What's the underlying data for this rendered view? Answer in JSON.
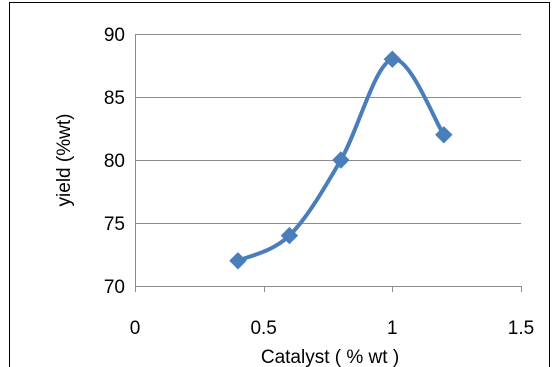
{
  "chart_data": {
    "type": "line",
    "title": "",
    "xlabel": "Catalyst  ( % wt )",
    "ylabel": "yield (%wt)",
    "xlim": [
      0,
      1.5
    ],
    "ylim": [
      70,
      90
    ],
    "x_ticks": [
      0,
      0.5,
      1,
      1.5
    ],
    "x_tick_labels": [
      "0",
      "0.5",
      "1",
      "1.5"
    ],
    "y_ticks": [
      70,
      75,
      80,
      85,
      90
    ],
    "y_tick_labels": [
      "70",
      "75",
      "80",
      "85",
      "90"
    ],
    "grid": "horizontal",
    "legend": "none",
    "smoothed": true,
    "marker": "diamond",
    "series_color": "#4a7ebb",
    "series": [
      {
        "x": [
          0.4,
          0.6,
          0.8,
          1.0,
          1.2
        ],
        "values": [
          72,
          74,
          80,
          88,
          82
        ]
      }
    ]
  }
}
